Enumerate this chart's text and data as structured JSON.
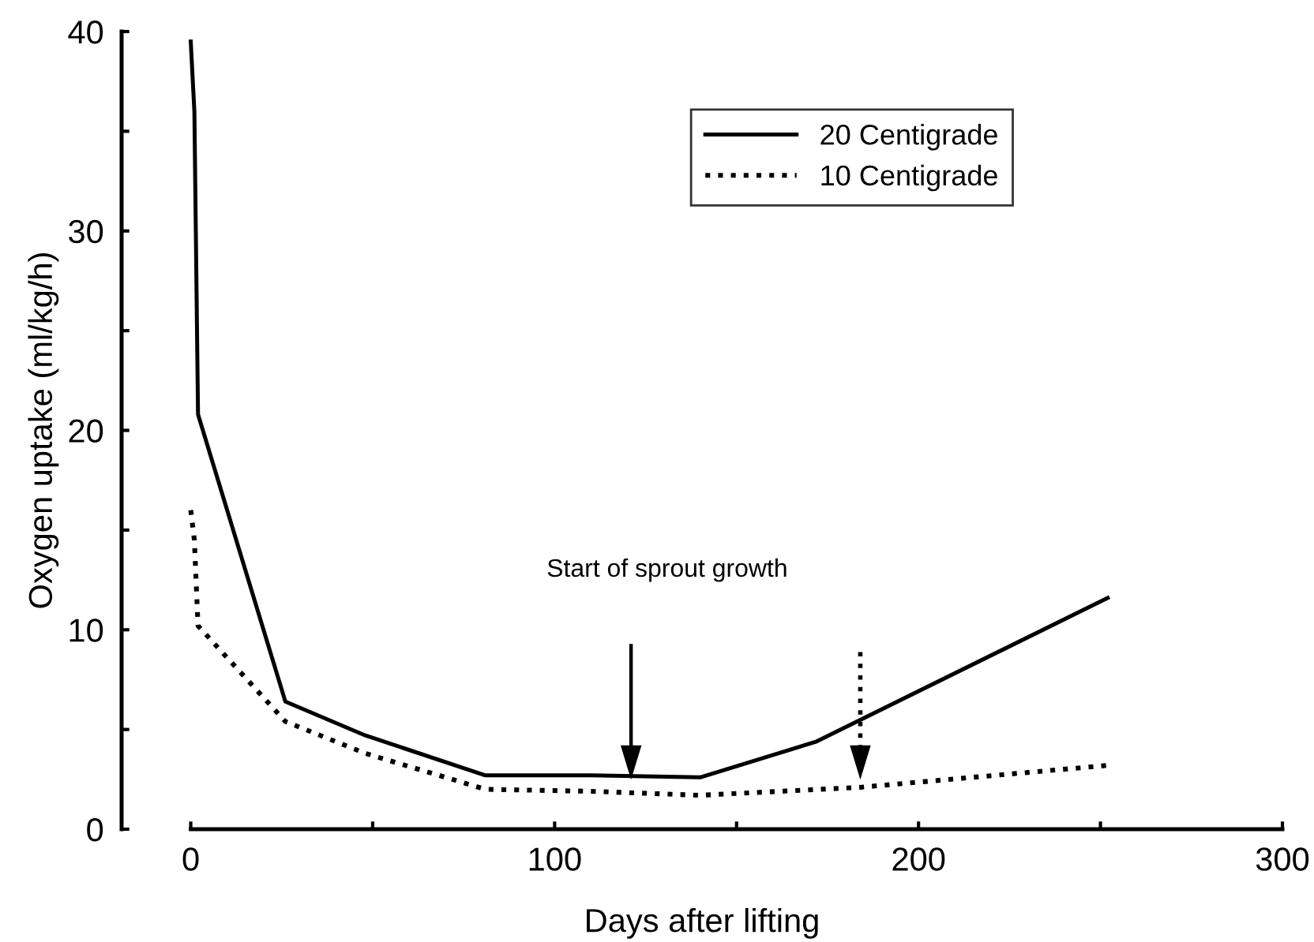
{
  "chart_data": {
    "type": "line",
    "xlabel": "Days after lifting",
    "ylabel": "Oxygen uptake (ml/kg/h)",
    "xlim": [
      -19,
      300
    ],
    "ylim": [
      0,
      40
    ],
    "xticks": [
      0,
      {
        "value": 50,
        "label": null
      },
      100,
      {
        "value": 150,
        "label": null
      },
      200,
      {
        "value": 250,
        "label": null
      },
      300
    ],
    "yticks": [
      0,
      {
        "value": 5,
        "label": null
      },
      10,
      {
        "value": 15,
        "label": null
      },
      20,
      {
        "value": 25,
        "label": null
      },
      30,
      {
        "value": 35,
        "label": null
      },
      40
    ],
    "legend": "top right",
    "grid": false,
    "marker": "none",
    "series": [
      {
        "name": "20 Centigrade",
        "color": "#000000",
        "line_style": "solid",
        "x": [
          0,
          1,
          2,
          26,
          48,
          81,
          110,
          140,
          172,
          252
        ],
        "values": [
          39.5,
          36,
          20.8,
          6.4,
          4.7,
          2.7,
          2.7,
          2.6,
          4.4,
          11.6
        ]
      },
      {
        "name": "10 Centigrade",
        "color": "#000000",
        "line_style": "dotted",
        "x": [
          0,
          1,
          2,
          26,
          48,
          81,
          110,
          140,
          184,
          252
        ],
        "values": [
          16.0,
          14.5,
          10.2,
          5.4,
          3.8,
          2.0,
          1.9,
          1.7,
          2.1,
          3.2
        ]
      }
    ],
    "ref_lines": [
      {
        "axis": "x",
        "value": 121,
        "line_style": "solid"
      },
      {
        "axis": "x",
        "value": 184,
        "line_style": "dotted"
      }
    ],
    "annotations": [
      "Start of sprout growth"
    ]
  }
}
